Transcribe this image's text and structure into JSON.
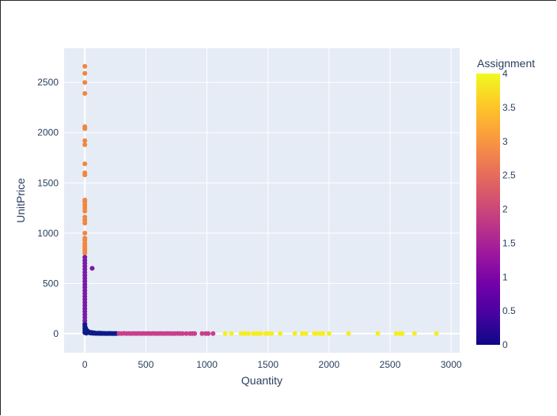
{
  "chart_data": {
    "type": "scatter",
    "xlabel": "Quantity",
    "ylabel": "UnitPrice",
    "xlim": [
      -170,
      3070
    ],
    "ylim": [
      -190,
      2840
    ],
    "x_ticks": [
      0,
      500,
      1000,
      1500,
      2000,
      2500,
      3000
    ],
    "y_ticks": [
      0,
      500,
      1000,
      1500,
      2000,
      2500
    ],
    "grid": true,
    "colorbar": {
      "title": "Assignment",
      "range": [
        0,
        4
      ],
      "ticks": [
        "0",
        "0.5",
        "1",
        "1.5",
        "2",
        "2.5",
        "3",
        "3.5",
        "4"
      ],
      "colors": [
        "#0d0887",
        "#46039f",
        "#7201a8",
        "#9c179e",
        "#bd3786",
        "#d8576b",
        "#ed7953",
        "#fb9f3a",
        "#fdca26",
        "#f0f921"
      ]
    },
    "series": [
      {
        "assignment": 3,
        "color": "#f1863e",
        "points": [
          [
            0,
            2660
          ],
          [
            0,
            2590
          ],
          [
            0,
            2500
          ],
          [
            0,
            2390
          ],
          [
            0,
            2060
          ],
          [
            0,
            2040
          ],
          [
            0,
            1920
          ],
          [
            0,
            1880
          ],
          [
            0,
            1690
          ],
          [
            0,
            1600
          ],
          [
            0,
            1580
          ],
          [
            0,
            1330
          ],
          [
            0,
            1310
          ],
          [
            0,
            1280
          ],
          [
            0,
            1250
          ],
          [
            0,
            1220
          ],
          [
            0,
            1160
          ],
          [
            0,
            1130
          ],
          [
            0,
            1100
          ],
          [
            0,
            1000
          ],
          [
            0,
            950
          ],
          [
            0,
            930
          ],
          [
            0,
            900
          ],
          [
            0,
            880
          ],
          [
            0,
            860
          ],
          [
            0,
            840
          ],
          [
            0,
            820
          ],
          [
            0,
            800
          ]
        ]
      },
      {
        "assignment": 1,
        "color": "#7a1aa8",
        "points": [
          [
            0,
            760
          ],
          [
            0,
            730
          ],
          [
            0,
            700
          ],
          [
            0,
            670
          ],
          [
            0,
            640
          ],
          [
            0,
            610
          ],
          [
            0,
            580
          ],
          [
            0,
            550
          ],
          [
            0,
            520
          ],
          [
            0,
            490
          ],
          [
            0,
            460
          ],
          [
            0,
            430
          ],
          [
            0,
            400
          ],
          [
            0,
            370
          ],
          [
            0,
            340
          ],
          [
            0,
            310
          ],
          [
            0,
            280
          ],
          [
            0,
            250
          ],
          [
            0,
            220
          ],
          [
            0,
            190
          ],
          [
            0,
            160
          ],
          [
            0,
            130
          ],
          [
            0,
            100
          ],
          [
            60,
            650
          ]
        ]
      },
      {
        "assignment": 0,
        "color": "#0d1a8a",
        "points": [
          [
            0,
            90
          ],
          [
            0,
            70
          ],
          [
            0,
            50
          ],
          [
            0,
            30
          ],
          [
            0,
            10
          ],
          [
            5,
            60
          ],
          [
            8,
            40
          ],
          [
            10,
            20
          ],
          [
            12,
            5
          ],
          [
            20,
            30
          ],
          [
            30,
            10
          ],
          [
            40,
            15
          ],
          [
            50,
            5
          ],
          [
            60,
            12
          ],
          [
            70,
            3
          ],
          [
            80,
            8
          ],
          [
            90,
            2
          ],
          [
            100,
            5
          ],
          [
            110,
            2
          ],
          [
            120,
            6
          ],
          [
            130,
            1
          ],
          [
            140,
            4
          ],
          [
            150,
            2
          ],
          [
            160,
            3
          ],
          [
            170,
            1
          ],
          [
            180,
            2
          ],
          [
            190,
            1
          ],
          [
            200,
            3
          ],
          [
            210,
            1
          ],
          [
            220,
            2
          ],
          [
            230,
            1
          ],
          [
            240,
            1
          ],
          [
            250,
            2
          ],
          [
            260,
            1
          ]
        ]
      },
      {
        "assignment": 2,
        "color": "#c93f8a",
        "points": [
          [
            280,
            2
          ],
          [
            300,
            1
          ],
          [
            320,
            3
          ],
          [
            340,
            1
          ],
          [
            360,
            2
          ],
          [
            380,
            1
          ],
          [
            400,
            2
          ],
          [
            420,
            1
          ],
          [
            440,
            2
          ],
          [
            460,
            1
          ],
          [
            480,
            2
          ],
          [
            500,
            1
          ],
          [
            520,
            2
          ],
          [
            540,
            1
          ],
          [
            560,
            2
          ],
          [
            580,
            1
          ],
          [
            600,
            1
          ],
          [
            620,
            2
          ],
          [
            640,
            1
          ],
          [
            660,
            1
          ],
          [
            680,
            2
          ],
          [
            700,
            1
          ],
          [
            720,
            1
          ],
          [
            740,
            1
          ],
          [
            760,
            2
          ],
          [
            780,
            1
          ],
          [
            800,
            1
          ],
          [
            830,
            1
          ],
          [
            860,
            1
          ],
          [
            880,
            1
          ],
          [
            900,
            1
          ],
          [
            960,
            1
          ],
          [
            990,
            1
          ],
          [
            1010,
            1
          ],
          [
            1050,
            1
          ]
        ]
      },
      {
        "assignment": 4,
        "color": "#f6ee1e",
        "points": [
          [
            1150,
            1
          ],
          [
            1200,
            1
          ],
          [
            1280,
            1
          ],
          [
            1310,
            1
          ],
          [
            1340,
            1
          ],
          [
            1380,
            1
          ],
          [
            1400,
            1
          ],
          [
            1420,
            1
          ],
          [
            1440,
            1
          ],
          [
            1480,
            1
          ],
          [
            1500,
            1
          ],
          [
            1530,
            1
          ],
          [
            1600,
            1
          ],
          [
            1720,
            1
          ],
          [
            1780,
            1
          ],
          [
            1810,
            1
          ],
          [
            1880,
            1
          ],
          [
            1900,
            1
          ],
          [
            1930,
            1
          ],
          [
            1950,
            1
          ],
          [
            2000,
            1
          ],
          [
            2160,
            1
          ],
          [
            2400,
            1
          ],
          [
            2550,
            1
          ],
          [
            2580,
            1
          ],
          [
            2600,
            1
          ],
          [
            2700,
            1
          ],
          [
            2880,
            1
          ]
        ]
      }
    ]
  }
}
